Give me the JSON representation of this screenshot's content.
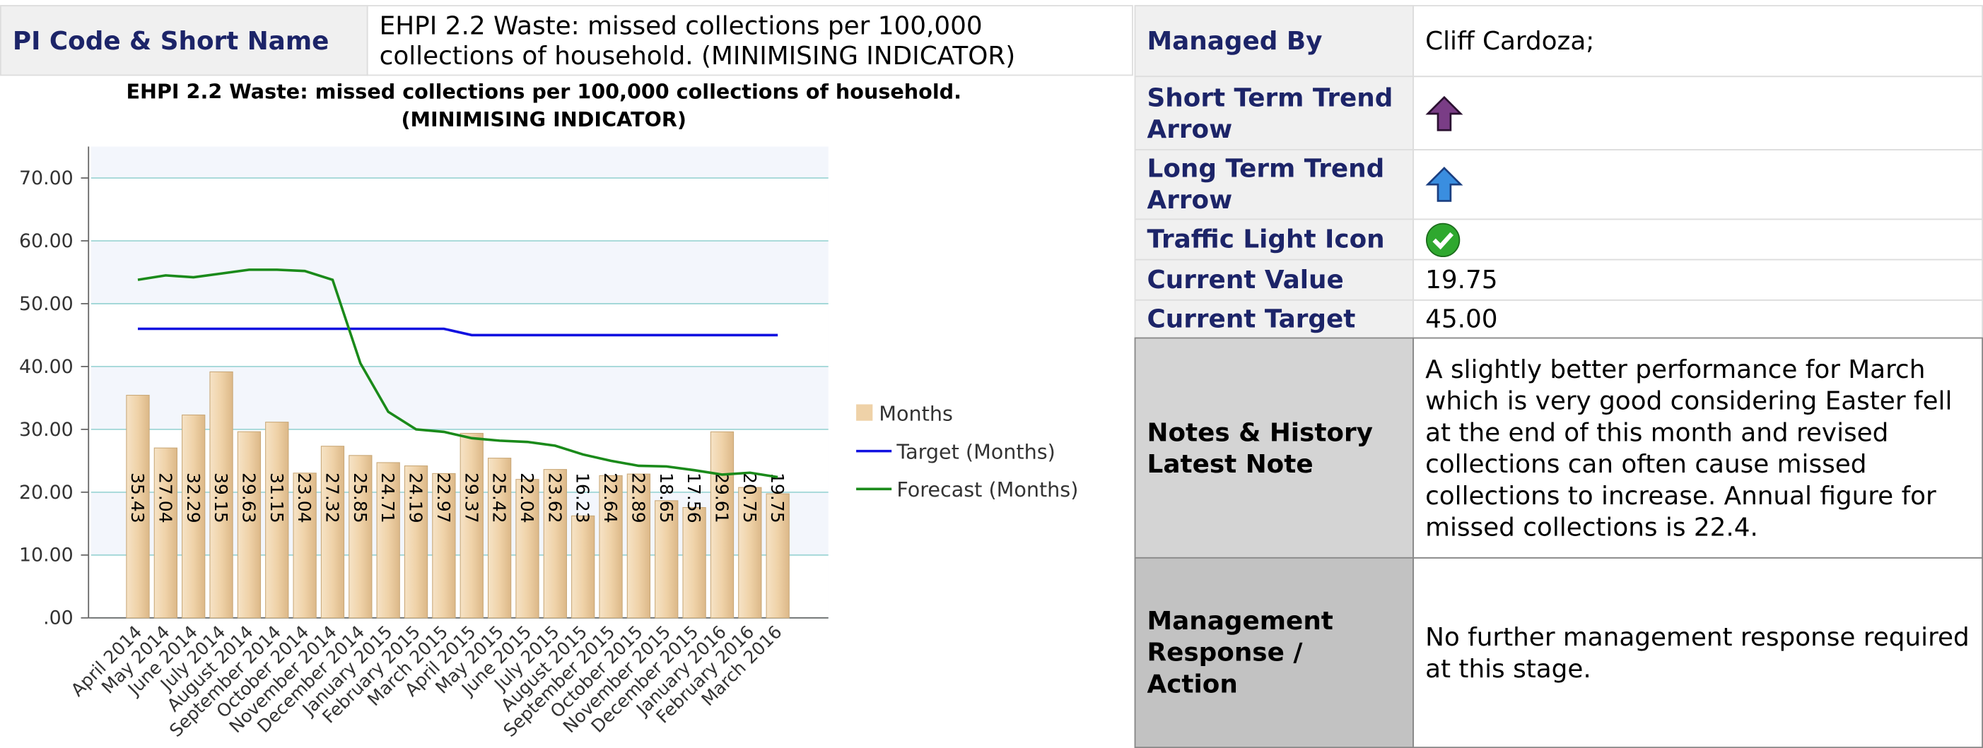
{
  "header": {
    "label": "PI Code & Short Name",
    "value": "EHPI 2.2 Waste: missed collections per 100,000 collections of household. (MINIMISING INDICATOR)"
  },
  "details": [
    {
      "label": "Managed By",
      "value": "Cliff Cardoza;"
    },
    {
      "label": "Short Term Trend Arrow"
    },
    {
      "label": "Long Term Trend Arrow"
    },
    {
      "label": "Traffic Light Icon"
    },
    {
      "label": "Current Value",
      "value": "19.75"
    },
    {
      "label": "Current Target",
      "value": "45.00"
    },
    {
      "label": "Notes & History Latest Note",
      "value": "A slightly better performance for March which is very good considering Easter fell at the end of this month and revised collections can often cause missed collections to increase. Annual figure for missed collections is 22.4."
    },
    {
      "label": "Management Response / Action",
      "value": "No further management response required at this stage."
    }
  ],
  "chart_data": {
    "type": "bar",
    "title": "EHPI 2.2 Waste: missed collections per 100,000 collections of household. (MINIMISING INDICATOR)",
    "categories": [
      "April 2014",
      "May 2014",
      "June 2014",
      "July 2014",
      "August 2014",
      "September 2014",
      "October 2014",
      "November 2014",
      "December 2014",
      "January 2015",
      "February 2015",
      "March 2015",
      "April 2015",
      "May 2015",
      "June 2015",
      "July 2015",
      "August 2015",
      "September 2015",
      "October 2015",
      "November 2015",
      "December 2015",
      "January 2016",
      "February 2016",
      "March 2016"
    ],
    "series": [
      {
        "name": "Months",
        "type": "bar",
        "color": "#efd2a8",
        "values": [
          35.43,
          27.04,
          32.29,
          39.15,
          29.63,
          31.15,
          23.04,
          27.32,
          25.85,
          24.71,
          24.19,
          22.97,
          29.37,
          25.42,
          22.04,
          23.62,
          16.23,
          22.64,
          22.89,
          18.65,
          17.56,
          29.61,
          20.75,
          19.75
        ]
      },
      {
        "name": "Target (Months)",
        "type": "line",
        "color": "#1010e0",
        "values": [
          46,
          46,
          46,
          46,
          46,
          46,
          46,
          46,
          46,
          46,
          46,
          46,
          45,
          45,
          45,
          45,
          45,
          45,
          45,
          45,
          45,
          45,
          45,
          45
        ]
      },
      {
        "name": "Forecast (Months)",
        "type": "line",
        "color": "#1a8a1a",
        "values": [
          53.8,
          54.5,
          54.2,
          54.8,
          55.4,
          55.4,
          55.2,
          53.8,
          40.5,
          32.8,
          30,
          29.6,
          28.6,
          28.2,
          28,
          27.4,
          26,
          25,
          24.2,
          24.1,
          23.5,
          22.8,
          23.1,
          22.4
        ]
      }
    ],
    "ylim": [
      0,
      75
    ],
    "yticks": [
      {
        "value": 0,
        "label": ".00"
      },
      {
        "value": 10,
        "label": "10.00"
      },
      {
        "value": 20,
        "label": "20.00"
      },
      {
        "value": 30,
        "label": "30.00"
      },
      {
        "value": 40,
        "label": "40.00"
      },
      {
        "value": 50,
        "label": "50.00"
      },
      {
        "value": 60,
        "label": "60.00"
      },
      {
        "value": 70,
        "label": "70.00"
      }
    ],
    "grid": true
  }
}
